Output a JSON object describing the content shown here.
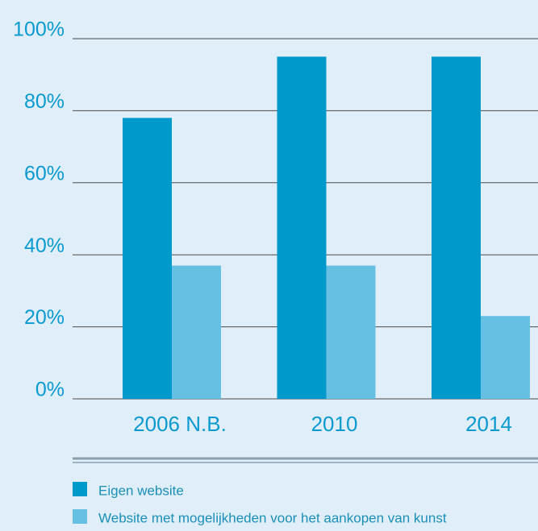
{
  "chart_data": {
    "type": "bar",
    "categories": [
      "2006 N.B.",
      "2010",
      "2014"
    ],
    "series": [
      {
        "name": "Eigen website",
        "color": "#0099cc",
        "values": [
          78,
          95,
          95
        ]
      },
      {
        "name": "Website met mogelijkheden voor het aankopen van kunst",
        "color": "#66c0e4",
        "values": [
          37,
          37,
          23
        ]
      }
    ],
    "ylim": [
      0,
      100
    ],
    "yticks": [
      {
        "value": 0,
        "label": "0%"
      },
      {
        "value": 20,
        "label": "20%"
      },
      {
        "value": 40,
        "label": "40%"
      },
      {
        "value": 60,
        "label": "60%"
      },
      {
        "value": 80,
        "label": "80%"
      },
      {
        "value": 100,
        "label": "100%"
      }
    ],
    "grid": true
  }
}
